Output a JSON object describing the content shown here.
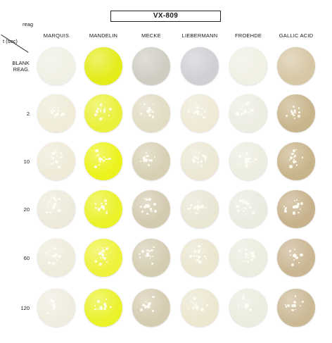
{
  "title": "VX-809",
  "corner": {
    "reagent_label": "reag",
    "time_label": "t (sec)"
  },
  "columns": [
    {
      "label": "MARQUIS"
    },
    {
      "label": "MANDELIN"
    },
    {
      "label": "MECKE"
    },
    {
      "label": "LIEBERMANN"
    },
    {
      "label": "FROEHDE"
    },
    {
      "label": "GALLIC ACID"
    }
  ],
  "rows": [
    {
      "label_line1": "BLANK",
      "label_line2": "REAG.",
      "colors": [
        "#f1f0e4",
        "#e4ec19",
        "#cfcdc2",
        "#cfd0d4",
        "#f1f0e4",
        "#d6c7a5"
      ],
      "grains": 0
    },
    {
      "label_line1": "2",
      "label_line2": "",
      "colors": [
        "#f0ecd8",
        "#eaf13a",
        "#e2dcc4",
        "#efead6",
        "#eeede2",
        "#c8b58b"
      ],
      "grains": 14
    },
    {
      "label_line1": "10",
      "label_line2": "",
      "colors": [
        "#efebd8",
        "#ecf31c",
        "#d8d0b5",
        "#ece8d5",
        "#eeede1",
        "#c8b48a"
      ],
      "grains": 16
    },
    {
      "label_line1": "20",
      "label_line2": "",
      "colors": [
        "#eeeadb",
        "#eaf229",
        "#d4cab0",
        "#e9e6d4",
        "#ebebe0",
        "#c7b28c"
      ],
      "grains": 18
    },
    {
      "label_line1": "60",
      "label_line2": "",
      "colors": [
        "#efecdc",
        "#eef23a",
        "#d5cdb2",
        "#ebe6cf",
        "#ececdf",
        "#cab692"
      ],
      "grains": 16
    },
    {
      "label_line1": "120",
      "label_line2": "",
      "colors": [
        "#f0ede0",
        "#eaf22a",
        "#d6ccb1",
        "#ece7d0",
        "#ececdf",
        "#cbb996"
      ],
      "grains": 14
    }
  ]
}
